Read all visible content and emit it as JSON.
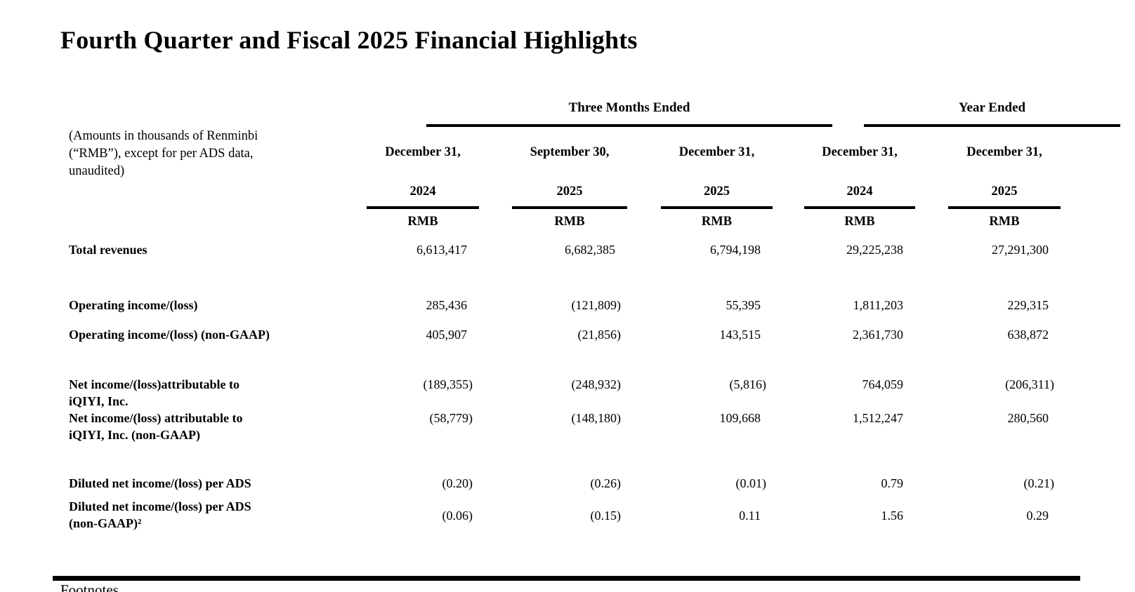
{
  "title": "Fourth Quarter and Fiscal 2025 Financial Highlights",
  "table": {
    "note": "(Amounts in thousands of Renminbi\n(“RMB”), except for per ADS data,\nunaudited)",
    "group_headers": {
      "three_months": "Three Months Ended",
      "year_ended": "Year Ended"
    },
    "columns": [
      {
        "month": "December 31,",
        "year": "2024",
        "unit": "RMB"
      },
      {
        "month": "September 30,",
        "year": "2025",
        "unit": "RMB"
      },
      {
        "month": "December 31,",
        "year": "2025",
        "unit": "RMB"
      },
      {
        "month": "December 31,",
        "year": "2024",
        "unit": "RMB"
      },
      {
        "month": "December 31,",
        "year": "2025",
        "unit": "RMB"
      }
    ],
    "rows": [
      {
        "label": "Total revenues",
        "values": [
          "6,613,417",
          "6,682,385",
          "6,794,198",
          "29,225,238",
          "27,291,300"
        ]
      },
      {
        "label": "Operating income/(loss)",
        "values": [
          "285,436",
          "(121,809)",
          "55,395",
          "1,811,203",
          "229,315"
        ]
      },
      {
        "label": "Operating income/(loss) (non-GAAP)",
        "values": [
          "405,907",
          "(21,856)",
          "143,515",
          "2,361,730",
          "638,872"
        ]
      },
      {
        "label": "Net income/(loss)attributable to\niQIYI, Inc.",
        "values": [
          "(189,355)",
          "(248,932)",
          "(5,816)",
          "764,059",
          "(206,311)"
        ]
      },
      {
        "label": "Net income/(loss) attributable to\niQIYI, Inc. (non-GAAP)",
        "values": [
          "(58,779)",
          "(148,180)",
          "109,668",
          "1,512,247",
          "280,560"
        ]
      },
      {
        "label": "Diluted net income/(loss) per ADS",
        "values": [
          "(0.20)",
          "(0.26)",
          "(0.01)",
          "0.79",
          "(0.21)"
        ]
      },
      {
        "label": "Diluted net income/(loss) per ADS\n(non-GAAP)²",
        "values": [
          "(0.06)",
          "(0.15)",
          "0.11",
          "1.56",
          "0.29"
        ]
      }
    ]
  },
  "footer": {
    "footnotes_label": "Footnotes"
  },
  "colors": {
    "text": "#000000",
    "background": "#ffffff",
    "rule": "#000000"
  }
}
